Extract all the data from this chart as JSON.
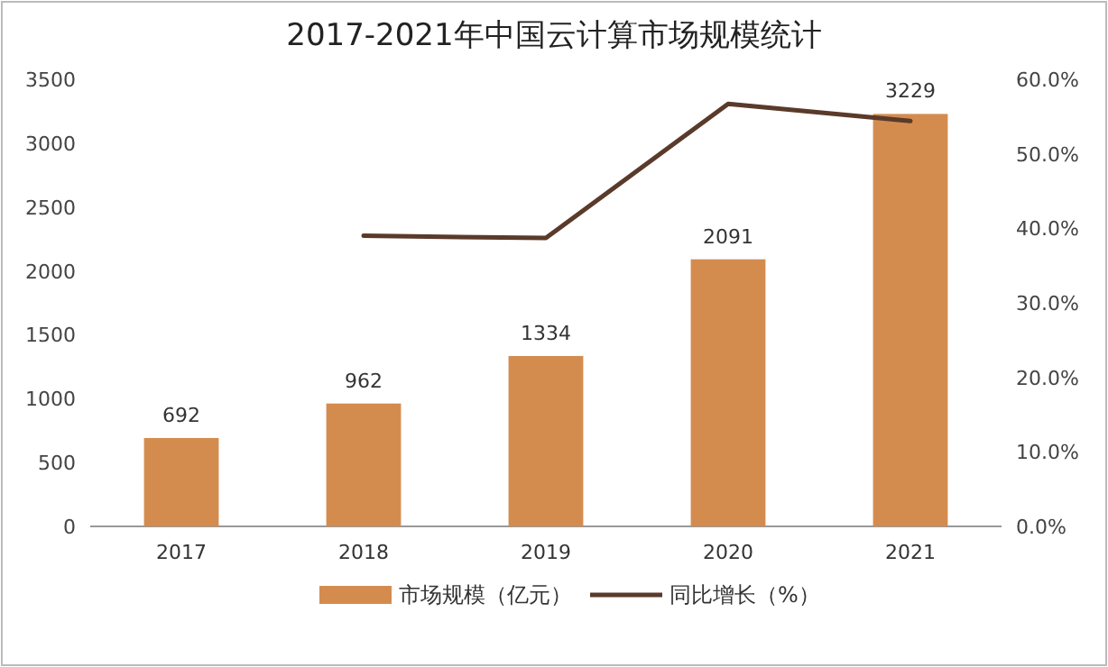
{
  "chart_data": {
    "type": "bar",
    "title": "2017-2021年中国云计算市场规模统计",
    "categories": [
      "2017",
      "2018",
      "2019",
      "2020",
      "2021"
    ],
    "series": [
      {
        "name": "市场规模（亿元）",
        "color": "#d48c4e",
        "values": [
          692,
          962,
          1334,
          2091,
          3229
        ],
        "value_labels": [
          "692",
          "962",
          "1334",
          "2091",
          "3229"
        ]
      },
      {
        "name": "同比增长（%）",
        "color": "#5a3a2a",
        "type": "line",
        "axis": "y2",
        "values": [
          null,
          39.0,
          38.7,
          56.7,
          54.4
        ]
      }
    ],
    "ylim": [
      0,
      3500
    ],
    "yticks": [
      0,
      500,
      1000,
      1500,
      2000,
      2500,
      3000,
      3500
    ],
    "y2lim": [
      0,
      60
    ],
    "y2ticks": [
      {
        "value": 0,
        "label": "0.0%"
      },
      {
        "value": 10,
        "label": "10.0%"
      },
      {
        "value": 20,
        "label": "20.0%"
      },
      {
        "value": 30,
        "label": "30.0%"
      },
      {
        "value": 40,
        "label": "40.0%"
      },
      {
        "value": 50,
        "label": "50.0%"
      },
      {
        "value": 60,
        "label": "60.0%"
      }
    ],
    "legend": "bottom",
    "grid": false
  }
}
